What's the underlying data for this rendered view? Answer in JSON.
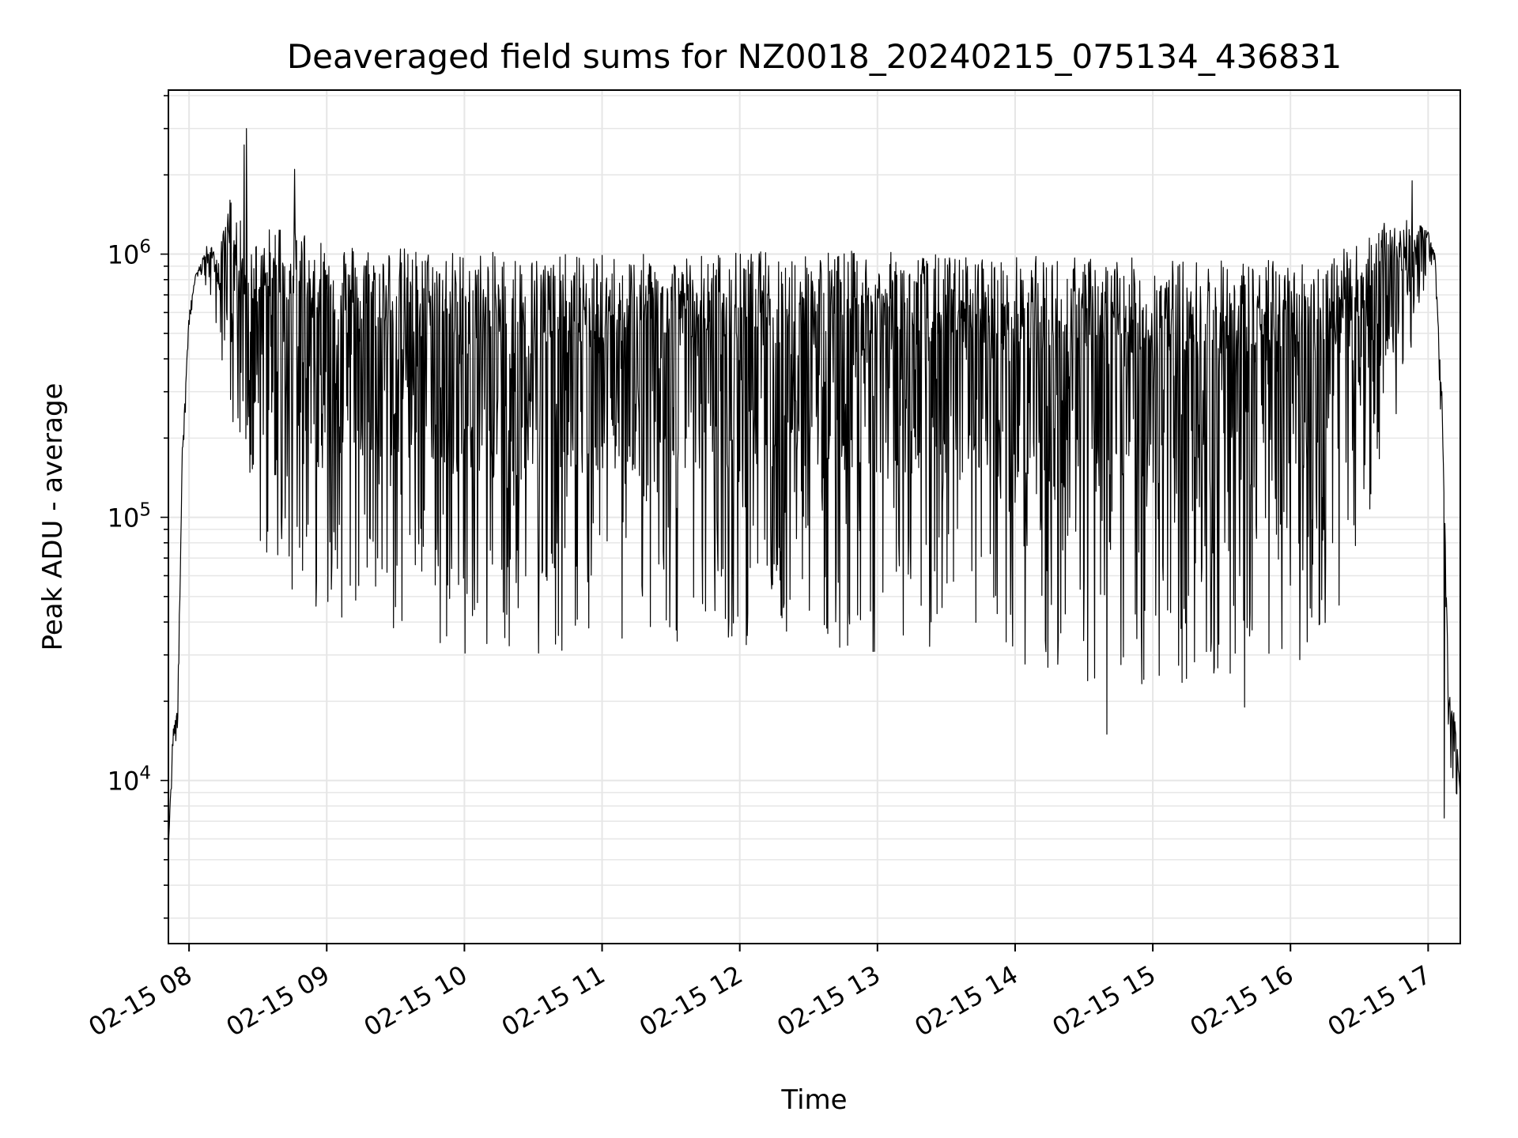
{
  "chart_data": {
    "type": "line",
    "title": "Deaveraged field sums for NZ0018_20240215_075134_436831",
    "xlabel": "Time",
    "ylabel": "Peak ADU - average",
    "y_scale": "log",
    "grid": true,
    "line_color": "#000000",
    "grid_color": "#e6e6e6",
    "x_ticks": [
      "02-15 08",
      "02-15 09",
      "02-15 10",
      "02-15 11",
      "02-15 12",
      "02-15 13",
      "02-15 14",
      "02-15 15",
      "02-15 16",
      "02-15 17"
    ],
    "y_ticks": [
      {
        "value": 10000,
        "base": "10",
        "exp": "4"
      },
      {
        "value": 100000,
        "base": "10",
        "exp": "5"
      },
      {
        "value": 1000000,
        "base": "10",
        "exp": "6"
      }
    ],
    "xlim": [
      "2024-02-15 07:51",
      "2024-02-15 17:14"
    ],
    "ylim": [
      2400,
      4200000
    ],
    "series": [
      {
        "x": [
          "2024-02-15 07:51",
          "2024-02-15 07:53",
          "2024-02-15 07:55",
          "2024-02-15 07:57",
          "2024-02-15 08:00",
          "2024-02-15 08:03",
          "2024-02-15 08:08",
          "2024-02-15 08:13",
          "2024-02-15 08:18",
          "2024-02-15 08:23",
          "2024-02-15 08:30",
          "2024-02-15 08:40",
          "2024-02-15 08:55",
          "2024-02-15 09:15",
          "2024-02-15 09:45",
          "2024-02-15 10:30",
          "2024-02-15 11:30",
          "2024-02-15 12:30",
          "2024-02-15 13:30",
          "2024-02-15 14:30",
          "2024-02-15 15:15",
          "2024-02-15 15:45",
          "2024-02-15 16:10",
          "2024-02-15 16:30",
          "2024-02-15 16:45",
          "2024-02-15 16:55",
          "2024-02-15 17:00",
          "2024-02-15 17:03",
          "2024-02-15 17:06",
          "2024-02-15 17:09",
          "2024-02-15 17:12",
          "2024-02-15 17:14"
        ],
        "upper": [
          5500,
          16000,
          19000,
          180000,
          600000,
          850000,
          1100000,
          1000000,
          1700000,
          1300000,
          1150000,
          1400000,
          1200000,
          1100000,
          1050000,
          1000000,
          1000000,
          1050000,
          1000000,
          980000,
          960000,
          960000,
          950000,
          1100000,
          1400000,
          1300000,
          1250000,
          1000000,
          300000,
          22000,
          17000,
          9000
        ],
        "lower": [
          5500,
          12000,
          15000,
          120000,
          500000,
          750000,
          700000,
          500000,
          200000,
          100000,
          70000,
          55000,
          45000,
          38000,
          30000,
          30000,
          32000,
          33000,
          28000,
          22000,
          22000,
          24000,
          30000,
          60000,
          220000,
          500000,
          900000,
          900000,
          150000,
          12000,
          9000,
          8000
        ]
      }
    ],
    "spikes": [
      {
        "x": "2024-02-15 08:24",
        "y": 2600000
      },
      {
        "x": "2024-02-15 08:25",
        "y": 3000000
      },
      {
        "x": "2024-02-15 08:46",
        "y": 2100000
      },
      {
        "x": "2024-02-15 16:53",
        "y": 1900000
      }
    ],
    "dips": [
      {
        "x": "2024-02-15 14:40",
        "y": 15000
      },
      {
        "x": "2024-02-15 15:40",
        "y": 19000
      },
      {
        "x": "2024-02-15 17:07",
        "y": 7200
      }
    ]
  }
}
